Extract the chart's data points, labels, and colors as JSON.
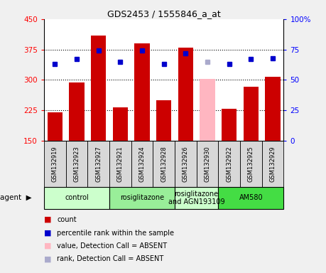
{
  "title": "GDS2453 / 1555846_a_at",
  "samples": [
    "GSM132919",
    "GSM132923",
    "GSM132927",
    "GSM132921",
    "GSM132924",
    "GSM132928",
    "GSM132926",
    "GSM132930",
    "GSM132922",
    "GSM132925",
    "GSM132929"
  ],
  "bar_values": [
    220,
    293,
    410,
    232,
    390,
    250,
    380,
    302,
    228,
    283,
    307
  ],
  "bar_colors": [
    "#cc0000",
    "#cc0000",
    "#cc0000",
    "#cc0000",
    "#cc0000",
    "#cc0000",
    "#cc0000",
    "#ffb6c1",
    "#cc0000",
    "#cc0000",
    "#cc0000"
  ],
  "rank_values": [
    63,
    67,
    74,
    65,
    74,
    63,
    72,
    65,
    63,
    67,
    68
  ],
  "rank_colors": [
    "#0000cc",
    "#0000cc",
    "#0000cc",
    "#0000cc",
    "#0000cc",
    "#0000cc",
    "#0000cc",
    "#aaaacc",
    "#0000cc",
    "#0000cc",
    "#0000cc"
  ],
  "ylim_left": [
    150,
    450
  ],
  "ylim_right": [
    0,
    100
  ],
  "yticks_left": [
    150,
    225,
    300,
    375,
    450
  ],
  "yticks_right": [
    0,
    25,
    50,
    75,
    100
  ],
  "agent_groups": [
    {
      "label": "control",
      "start": 0,
      "end": 3,
      "color": "#ccffcc"
    },
    {
      "label": "rosiglitazone",
      "start": 3,
      "end": 6,
      "color": "#99ee99"
    },
    {
      "label": "rosiglitazone\nand AGN193109",
      "start": 6,
      "end": 8,
      "color": "#ccffcc"
    },
    {
      "label": "AM580",
      "start": 8,
      "end": 11,
      "color": "#44dd44"
    }
  ],
  "legend_items": [
    {
      "color": "#cc0000",
      "label": "count"
    },
    {
      "color": "#0000cc",
      "label": "percentile rank within the sample"
    },
    {
      "color": "#ffb6c1",
      "label": "value, Detection Call = ABSENT"
    },
    {
      "color": "#aaaacc",
      "label": "rank, Detection Call = ABSENT"
    }
  ],
  "bar_width": 0.7,
  "figure_bg": "#f0f0f0",
  "plot_bg": "#ffffff",
  "sample_box_bg": "#d8d8d8"
}
